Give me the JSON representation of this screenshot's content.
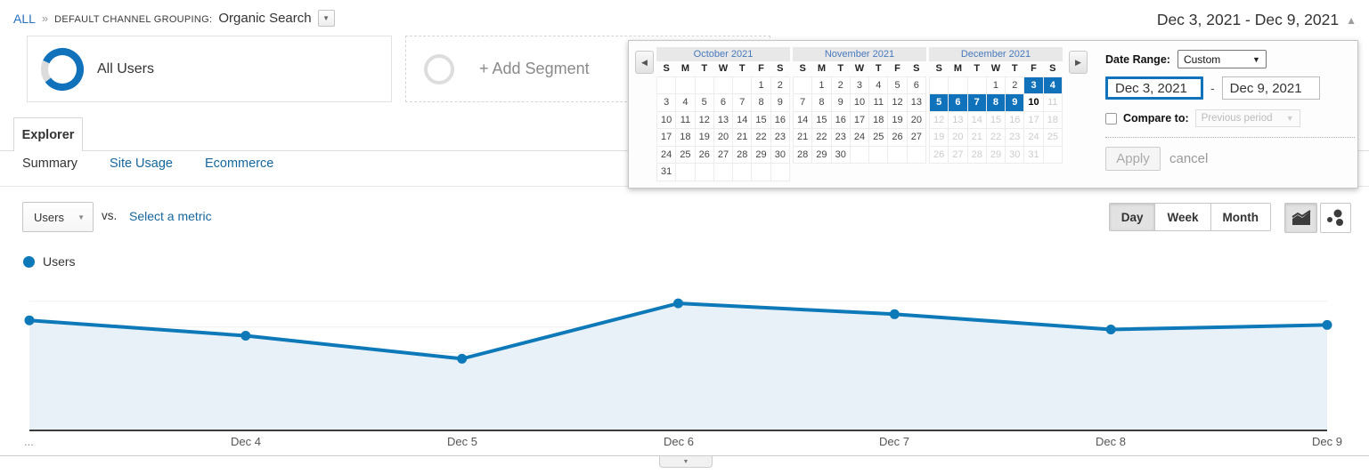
{
  "header": {
    "breadcrumb": {
      "all": "ALL",
      "separator": "»",
      "label": "DEFAULT CHANNEL GROUPING:",
      "value": "Organic Search"
    },
    "date_display": "Dec 3, 2021 - Dec 9, 2021",
    "collapse_icon": "▲"
  },
  "segments": {
    "all_users": "All Users",
    "add_segment": "+ Add Segment"
  },
  "tabs": {
    "explorer": "Explorer",
    "subtabs": [
      {
        "label": "Summary",
        "active": true
      },
      {
        "label": "Site Usage",
        "active": false
      },
      {
        "label": "Ecommerce",
        "active": false
      }
    ]
  },
  "toolbar": {
    "metric_selected": "Users",
    "vs": "vs.",
    "select_metric": "Select a metric",
    "granularity": [
      "Day",
      "Week",
      "Month"
    ],
    "granularity_active": "Day"
  },
  "legend": {
    "label": "Users",
    "color": "#0e79b8"
  },
  "datepicker": {
    "nav": {
      "prev": "◀",
      "next": "▶"
    },
    "months": [
      {
        "title": "October 2021",
        "headers": [
          "S",
          "M",
          "T",
          "W",
          "T",
          "F",
          "S"
        ],
        "cells": [
          [
            "",
            "b"
          ],
          [
            "",
            "b"
          ],
          [
            "",
            "b"
          ],
          [
            "",
            "b"
          ],
          [
            "",
            "b"
          ],
          [
            "1",
            "n"
          ],
          [
            "2",
            "n"
          ],
          [
            "3",
            "n"
          ],
          [
            "4",
            "n"
          ],
          [
            "5",
            "n"
          ],
          [
            "6",
            "n"
          ],
          [
            "7",
            "n"
          ],
          [
            "8",
            "n"
          ],
          [
            "9",
            "n"
          ],
          [
            "10",
            "n"
          ],
          [
            "11",
            "n"
          ],
          [
            "12",
            "n"
          ],
          [
            "13",
            "n"
          ],
          [
            "14",
            "n"
          ],
          [
            "15",
            "n"
          ],
          [
            "16",
            "n"
          ],
          [
            "17",
            "n"
          ],
          [
            "18",
            "n"
          ],
          [
            "19",
            "n"
          ],
          [
            "20",
            "n"
          ],
          [
            "21",
            "n"
          ],
          [
            "22",
            "n"
          ],
          [
            "23",
            "n"
          ],
          [
            "24",
            "n"
          ],
          [
            "25",
            "n"
          ],
          [
            "26",
            "n"
          ],
          [
            "27",
            "n"
          ],
          [
            "28",
            "n"
          ],
          [
            "29",
            "n"
          ],
          [
            "30",
            "n"
          ],
          [
            "31",
            "n"
          ],
          [
            "",
            "b"
          ],
          [
            "",
            "b"
          ],
          [
            "",
            "b"
          ],
          [
            "",
            "b"
          ],
          [
            "",
            "b"
          ],
          [
            "",
            "b"
          ]
        ]
      },
      {
        "title": "November 2021",
        "headers": [
          "S",
          "M",
          "T",
          "W",
          "T",
          "F",
          "S"
        ],
        "cells": [
          [
            "",
            "b"
          ],
          [
            "1",
            "n"
          ],
          [
            "2",
            "n"
          ],
          [
            "3",
            "n"
          ],
          [
            "4",
            "n"
          ],
          [
            "5",
            "n"
          ],
          [
            "6",
            "n"
          ],
          [
            "7",
            "n"
          ],
          [
            "8",
            "n"
          ],
          [
            "9",
            "n"
          ],
          [
            "10",
            "n"
          ],
          [
            "11",
            "n"
          ],
          [
            "12",
            "n"
          ],
          [
            "13",
            "n"
          ],
          [
            "14",
            "n"
          ],
          [
            "15",
            "n"
          ],
          [
            "16",
            "n"
          ],
          [
            "17",
            "n"
          ],
          [
            "18",
            "n"
          ],
          [
            "19",
            "n"
          ],
          [
            "20",
            "n"
          ],
          [
            "21",
            "n"
          ],
          [
            "22",
            "n"
          ],
          [
            "23",
            "n"
          ],
          [
            "24",
            "n"
          ],
          [
            "25",
            "n"
          ],
          [
            "26",
            "n"
          ],
          [
            "27",
            "n"
          ],
          [
            "28",
            "n"
          ],
          [
            "29",
            "n"
          ],
          [
            "30",
            "n"
          ],
          [
            "",
            "b"
          ],
          [
            "",
            "b"
          ],
          [
            "",
            "b"
          ],
          [
            "",
            "b"
          ]
        ]
      },
      {
        "title": "December 2021",
        "headers": [
          "S",
          "M",
          "T",
          "W",
          "T",
          "F",
          "S"
        ],
        "cells": [
          [
            "",
            "b"
          ],
          [
            "",
            "b"
          ],
          [
            "",
            "b"
          ],
          [
            "1",
            "n"
          ],
          [
            "2",
            "n"
          ],
          [
            "3",
            "sel"
          ],
          [
            "4",
            "sel"
          ],
          [
            "5",
            "sel"
          ],
          [
            "6",
            "sel"
          ],
          [
            "7",
            "sel"
          ],
          [
            "8",
            "sel"
          ],
          [
            "9",
            "sel"
          ],
          [
            "10",
            "today"
          ],
          [
            "11",
            "fut"
          ],
          [
            "12",
            "fut"
          ],
          [
            "13",
            "fut"
          ],
          [
            "14",
            "fut"
          ],
          [
            "15",
            "fut"
          ],
          [
            "16",
            "fut"
          ],
          [
            "17",
            "fut"
          ],
          [
            "18",
            "fut"
          ],
          [
            "19",
            "fut"
          ],
          [
            "20",
            "fut"
          ],
          [
            "21",
            "fut"
          ],
          [
            "22",
            "fut"
          ],
          [
            "23",
            "fut"
          ],
          [
            "24",
            "fut"
          ],
          [
            "25",
            "fut"
          ],
          [
            "26",
            "fut"
          ],
          [
            "27",
            "fut"
          ],
          [
            "28",
            "fut"
          ],
          [
            "29",
            "fut"
          ],
          [
            "30",
            "fut"
          ],
          [
            "31",
            "fut"
          ],
          [
            "",
            "b"
          ]
        ]
      }
    ],
    "form": {
      "label": "Date Range:",
      "preset": "Custom",
      "start": "Dec 3, 2021",
      "separator": "-",
      "end": "Dec 9, 2021",
      "compare_label": "Compare to:",
      "compare_option": "Previous period",
      "apply": "Apply",
      "cancel": "cancel"
    }
  },
  "chart_data": {
    "type": "line",
    "x": [
      "Dec 3",
      "Dec 4",
      "Dec 5",
      "Dec 6",
      "Dec 7",
      "Dec 8",
      "Dec 9"
    ],
    "x_tick_labels": [
      "...",
      "Dec 4",
      "Dec 5",
      "Dec 6",
      "Dec 7",
      "Dec 8",
      "Dec 9"
    ],
    "series": [
      {
        "name": "Users",
        "color": "#0e79b8",
        "values_norm": [
          0.71,
          0.61,
          0.46,
          0.82,
          0.75,
          0.65,
          0.68
        ]
      }
    ],
    "y_axis_labels_visible": false,
    "grid": true,
    "area_fill": "#e8f1f8",
    "legend_position": "top-left"
  },
  "colors": {
    "accent_blue": "#1072ba",
    "line_blue": "#0e79b8",
    "area_fill": "#e8f1f8",
    "link": "#15679e",
    "selected_day_bg": "#1072ba"
  }
}
